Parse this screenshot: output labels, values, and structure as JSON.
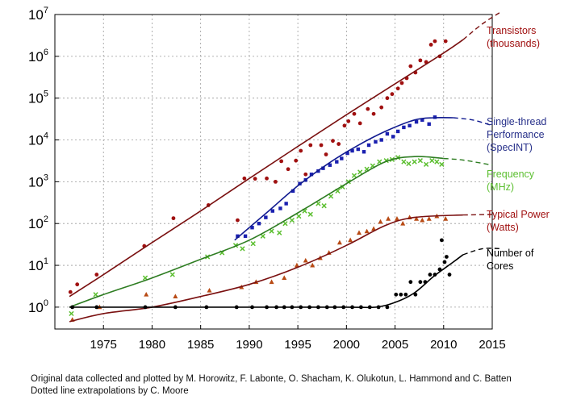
{
  "chart_data": {
    "type": "scatter",
    "title": "",
    "xlabel": "",
    "ylabel": "",
    "y_scale": "log",
    "xlim": [
      1970,
      2015
    ],
    "ylim": [
      0.3,
      10000000
    ],
    "grid": true,
    "x_ticks": [
      "1975",
      "1980",
      "1985",
      "1990",
      "1995",
      "2000",
      "2005",
      "2010",
      "2015"
    ],
    "y_ticks": [
      {
        "base": "10",
        "exp": "0",
        "value": 1
      },
      {
        "base": "10",
        "exp": "1",
        "value": 10
      },
      {
        "base": "10",
        "exp": "2",
        "value": 100
      },
      {
        "base": "10",
        "exp": "3",
        "value": 1000
      },
      {
        "base": "10",
        "exp": "4",
        "value": 10000
      },
      {
        "base": "10",
        "exp": "5",
        "value": 100000
      },
      {
        "base": "10",
        "exp": "6",
        "value": 1000000
      },
      {
        "base": "10",
        "exp": "7",
        "value": 10000000
      }
    ],
    "legend_placement": "right",
    "series": [
      {
        "name": "Transistors (thousands)",
        "label_lines": [
          "Transistors",
          "(thousands)"
        ],
        "color": "#a01010",
        "marker": "circle",
        "points": [
          [
            1971.6,
            2.3
          ],
          [
            1972.3,
            3.5
          ],
          [
            1974.3,
            6
          ],
          [
            1979.2,
            29
          ],
          [
            1982.2,
            134
          ],
          [
            1985.8,
            275
          ],
          [
            1988.8,
            120
          ],
          [
            1989.5,
            1200
          ],
          [
            1990.6,
            1180
          ],
          [
            1991.8,
            1200
          ],
          [
            1992.7,
            1000
          ],
          [
            1993.3,
            3100
          ],
          [
            1994,
            2000
          ],
          [
            1994.8,
            3200
          ],
          [
            1995.3,
            5500
          ],
          [
            1995.8,
            1500
          ],
          [
            1996.3,
            7500
          ],
          [
            1997.4,
            7500
          ],
          [
            1997.9,
            4500
          ],
          [
            1998.6,
            9500
          ],
          [
            1999.2,
            8000
          ],
          [
            1999.8,
            22000
          ],
          [
            2000.2,
            28000
          ],
          [
            2000.8,
            42000
          ],
          [
            2001.4,
            25000
          ],
          [
            2002.2,
            55000
          ],
          [
            2002.8,
            42000
          ],
          [
            2003.6,
            60000
          ],
          [
            2004.2,
            100000
          ],
          [
            2004.7,
            125000
          ],
          [
            2005.3,
            170000
          ],
          [
            2005.7,
            230000
          ],
          [
            2006.2,
            300000
          ],
          [
            2006.6,
            580000
          ],
          [
            2007.1,
            410000
          ],
          [
            2007.6,
            800000
          ],
          [
            2008.2,
            730000
          ],
          [
            2008.7,
            1900000
          ],
          [
            2009.1,
            2300000
          ],
          [
            2009.6,
            1000000
          ],
          [
            2010.2,
            2300000
          ]
        ],
        "fit": [
          [
            1971.5,
            1.8
          ],
          [
            1975,
            6
          ],
          [
            1980,
            35
          ],
          [
            1985,
            200
          ],
          [
            1990,
            1200
          ],
          [
            1995,
            7000
          ],
          [
            2000,
            40000
          ],
          [
            2005,
            220000
          ],
          [
            2010,
            1200000
          ],
          [
            2012,
            2500000
          ]
        ],
        "extrapolation": [
          [
            2012,
            2500000
          ],
          [
            2014,
            6000000
          ],
          [
            2016,
            12000000
          ]
        ]
      },
      {
        "name": "Single-thread Performance (SpecINT)",
        "label_lines": [
          "Single-thread",
          "Performance",
          "(SpecINT)"
        ],
        "color": "#1a20b0",
        "marker": "square",
        "points": [
          [
            1988.8,
            50
          ],
          [
            1989.6,
            50
          ],
          [
            1990.3,
            80
          ],
          [
            1991,
            100
          ],
          [
            1991.7,
            140
          ],
          [
            1992.4,
            200
          ],
          [
            1993.2,
            230
          ],
          [
            1993.8,
            300
          ],
          [
            1994.5,
            600
          ],
          [
            1995.2,
            900
          ],
          [
            1995.8,
            1100
          ],
          [
            1996.4,
            1500
          ],
          [
            1997.1,
            1800
          ],
          [
            1997.6,
            2100
          ],
          [
            1998.3,
            2500
          ],
          [
            1999,
            3000
          ],
          [
            1999.5,
            3600
          ],
          [
            2000.1,
            4800
          ],
          [
            2000.6,
            5500
          ],
          [
            2001.2,
            6000
          ],
          [
            2001.8,
            5200
          ],
          [
            2002.3,
            7500
          ],
          [
            2003,
            9000
          ],
          [
            2003.6,
            10000
          ],
          [
            2004.2,
            14000
          ],
          [
            2004.8,
            12000
          ],
          [
            2005.3,
            16000
          ],
          [
            2005.9,
            20000
          ],
          [
            2006.5,
            22000
          ],
          [
            2007.2,
            27000
          ],
          [
            2007.8,
            30000
          ],
          [
            2008.5,
            24000
          ],
          [
            2009.1,
            35000
          ]
        ],
        "fit": [
          [
            1988.5,
            40
          ],
          [
            1990,
            80
          ],
          [
            1992,
            200
          ],
          [
            1995,
            800
          ],
          [
            1998,
            2600
          ],
          [
            2001,
            7000
          ],
          [
            2004,
            16000
          ],
          [
            2007,
            30000
          ],
          [
            2009,
            34000
          ],
          [
            2011,
            34000
          ]
        ],
        "extrapolation": [
          [
            2011,
            34000
          ],
          [
            2013,
            30000
          ],
          [
            2015,
            22000
          ]
        ]
      },
      {
        "name": "Frequency (MHz)",
        "label_lines": [
          "Frequency",
          "(MHz)"
        ],
        "color": "#5cbf30",
        "marker": "cross",
        "points": [
          [
            1971.7,
            0.7
          ],
          [
            1974.2,
            2
          ],
          [
            1979.3,
            5
          ],
          [
            1982.1,
            6
          ],
          [
            1985.7,
            16
          ],
          [
            1987.2,
            20
          ],
          [
            1988.6,
            30
          ],
          [
            1989.3,
            25
          ],
          [
            1990.4,
            33
          ],
          [
            1991.4,
            50
          ],
          [
            1992.3,
            66
          ],
          [
            1993.1,
            60
          ],
          [
            1993.7,
            100
          ],
          [
            1994.4,
            120
          ],
          [
            1995.1,
            150
          ],
          [
            1995.7,
            200
          ],
          [
            1996.3,
            166
          ],
          [
            1997.1,
            300
          ],
          [
            1997.7,
            266
          ],
          [
            1998.4,
            450
          ],
          [
            1999.1,
            600
          ],
          [
            1999.6,
            750
          ],
          [
            2000.2,
            1000
          ],
          [
            2000.8,
            1400
          ],
          [
            2001.4,
            1700
          ],
          [
            2002.1,
            2000
          ],
          [
            2002.7,
            2400
          ],
          [
            2003.4,
            3000
          ],
          [
            2004.1,
            3200
          ],
          [
            2004.7,
            3400
          ],
          [
            2005.3,
            3800
          ],
          [
            2005.9,
            3000
          ],
          [
            2006.4,
            2700
          ],
          [
            2007,
            3000
          ],
          [
            2007.6,
            3200
          ],
          [
            2008.2,
            2600
          ],
          [
            2008.8,
            3200
          ],
          [
            2009.3,
            3000
          ],
          [
            2009.8,
            2600
          ]
        ],
        "fit": [
          [
            1971.5,
            1
          ],
          [
            1975,
            2
          ],
          [
            1980,
            5
          ],
          [
            1985,
            14
          ],
          [
            1990,
            40
          ],
          [
            1995,
            180
          ],
          [
            2000,
            900
          ],
          [
            2004,
            3000
          ],
          [
            2007,
            4000
          ],
          [
            2010,
            3600
          ]
        ],
        "extrapolation": [
          [
            2010,
            3600
          ],
          [
            2012,
            3300
          ],
          [
            2015,
            2500
          ]
        ]
      },
      {
        "name": "Typical Power (Watts)",
        "label_lines": [
          "Typical Power",
          "(Watts)"
        ],
        "color": "#b84a14",
        "marker": "triangle",
        "points": [
          [
            1971.8,
            0.5
          ],
          [
            1974.6,
            1
          ],
          [
            1979.4,
            2
          ],
          [
            1982.4,
            1.8
          ],
          [
            1985.9,
            2.5
          ],
          [
            1989.2,
            3
          ],
          [
            1990.7,
            4
          ],
          [
            1992.3,
            4
          ],
          [
            1993.6,
            5
          ],
          [
            1994.9,
            10
          ],
          [
            1995.8,
            13
          ],
          [
            1996.5,
            10
          ],
          [
            1997.3,
            15
          ],
          [
            1998.2,
            20
          ],
          [
            1999.3,
            35
          ],
          [
            2000.4,
            40
          ],
          [
            2001.3,
            60
          ],
          [
            2002.1,
            65
          ],
          [
            2002.8,
            75
          ],
          [
            2003.5,
            110
          ],
          [
            2004.3,
            130
          ],
          [
            2005.2,
            130
          ],
          [
            2005.8,
            100
          ],
          [
            2006.5,
            140
          ],
          [
            2007.2,
            130
          ],
          [
            2007.8,
            120
          ],
          [
            2008.5,
            130
          ],
          [
            2009.3,
            150
          ],
          [
            2010.2,
            130
          ]
        ],
        "fit": [
          [
            1971.5,
            0.45
          ],
          [
            1975,
            0.7
          ],
          [
            1980,
            1
          ],
          [
            1985,
            1.8
          ],
          [
            1990,
            3.5
          ],
          [
            1995,
            9
          ],
          [
            2000,
            30
          ],
          [
            2004,
            90
          ],
          [
            2007,
            140
          ],
          [
            2012,
            160
          ]
        ],
        "extrapolation": [
          [
            2012,
            160
          ],
          [
            2015,
            165
          ]
        ]
      },
      {
        "name": "Number of Cores",
        "label_lines": [
          "Number of",
          "Cores"
        ],
        "color": "#000000",
        "marker": "dot",
        "points": [
          [
            1971.8,
            1
          ],
          [
            1974.3,
            1
          ],
          [
            1979.3,
            1
          ],
          [
            1982.4,
            1
          ],
          [
            1985.6,
            1
          ],
          [
            1988.7,
            1
          ],
          [
            1990.3,
            1
          ],
          [
            1991.8,
            1
          ],
          [
            1992.8,
            1
          ],
          [
            1993.6,
            1
          ],
          [
            1994.4,
            1
          ],
          [
            1995.3,
            1
          ],
          [
            1996.2,
            1
          ],
          [
            1997.1,
            1
          ],
          [
            1998,
            1
          ],
          [
            1998.8,
            1
          ],
          [
            1999.7,
            1
          ],
          [
            2000.6,
            1
          ],
          [
            2001.5,
            1
          ],
          [
            2002.4,
            1
          ],
          [
            2003.3,
            1
          ],
          [
            2004.2,
            1
          ],
          [
            2005.1,
            2
          ],
          [
            2005.6,
            2
          ],
          [
            2006.1,
            2
          ],
          [
            2006.6,
            4
          ],
          [
            2007.1,
            2
          ],
          [
            2007.6,
            4
          ],
          [
            2008.1,
            4
          ],
          [
            2008.6,
            6
          ],
          [
            2009.1,
            6
          ],
          [
            2009.6,
            8
          ],
          [
            2010.1,
            12
          ],
          [
            2010.6,
            6
          ],
          [
            2010.3,
            16
          ],
          [
            2009.8,
            40
          ]
        ],
        "fit": [
          [
            1971.5,
            1
          ],
          [
            1980,
            1
          ],
          [
            1990,
            1
          ],
          [
            2000,
            1
          ],
          [
            2003,
            1
          ],
          [
            2005,
            1.3
          ],
          [
            2007,
            2.2
          ],
          [
            2009,
            5.5
          ],
          [
            2011,
            12
          ],
          [
            2012,
            18
          ]
        ],
        "extrapolation": [
          [
            2012,
            18
          ],
          [
            2014,
            25
          ],
          [
            2016,
            25
          ]
        ]
      }
    ]
  },
  "credits": {
    "line1": "Original data collected and plotted by M. Horowitz, F. Labonte, O. Shacham, K. Olukotun, L. Hammond and C. Batten",
    "line2": "Dotted line extrapolations by C. Moore"
  }
}
